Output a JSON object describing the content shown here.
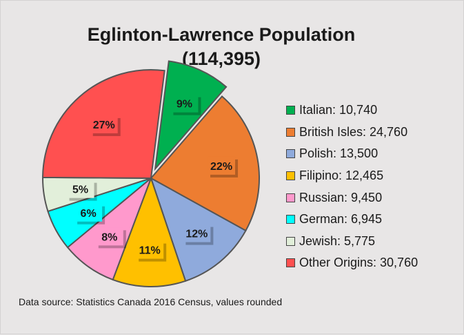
{
  "chart_data": {
    "type": "pie",
    "title": "Eglinton-Lawrence Population",
    "subtitle": "(114,395)",
    "categories": [
      "Italian",
      "British Isles",
      "Polish",
      "Filipino",
      "Russian",
      "German",
      "Jewish",
      "Other Origins"
    ],
    "values": [
      10740,
      24760,
      13500,
      12465,
      9450,
      6945,
      5775,
      30760
    ],
    "percent_labels": [
      "9%",
      "22%",
      "12%",
      "11%",
      "8%",
      "6%",
      "5%",
      "27%"
    ],
    "legend_entries": [
      "Italian: 10,740",
      "British Isles: 24,760",
      "Polish: 13,500",
      "Filipino: 12,465",
      "Russian: 9,450",
      "German: 6,945",
      "Jewish: 5,775",
      "Other Origins: 30,760"
    ],
    "colors": [
      "#00b050",
      "#ed7d31",
      "#8faadc",
      "#ffc000",
      "#ff99cc",
      "#00ffff",
      "#e2efda",
      "#ff5050"
    ],
    "exploded_slice": "Italian",
    "legend_position": "right",
    "source_note": "Data source: Statistics Canada 2016 Census, values rounded"
  }
}
